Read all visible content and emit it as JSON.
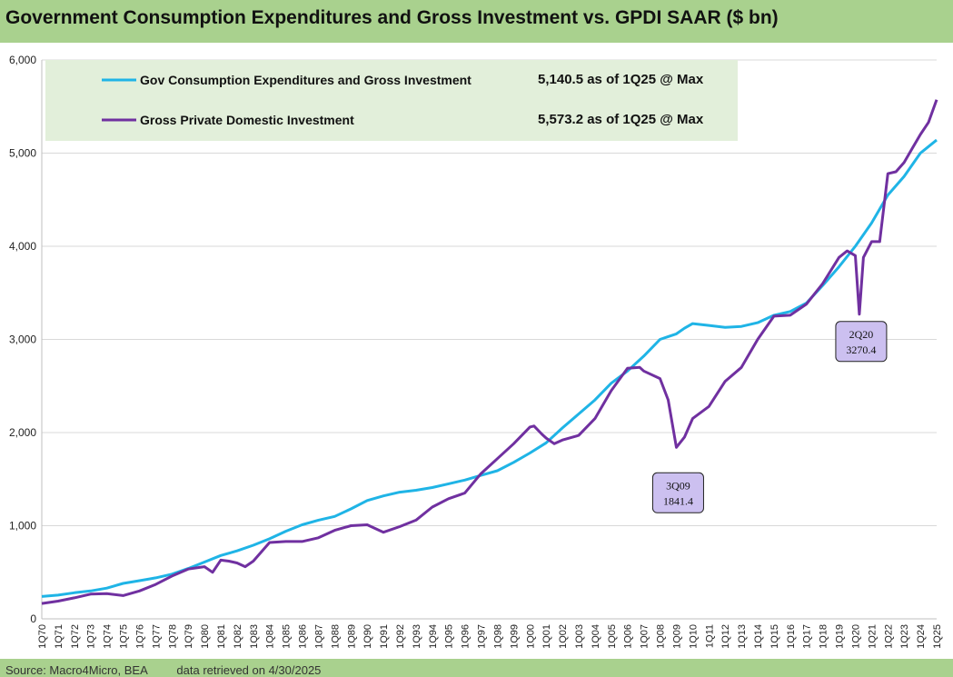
{
  "chart_data": {
    "type": "line",
    "title": "Government Consumption Expenditures and Gross Investment vs. GPDI SAAR ($ bn)",
    "xlabel": "",
    "ylabel": "",
    "ylim": [
      0,
      6000
    ],
    "yticks": [
      0,
      1000,
      2000,
      3000,
      4000,
      5000,
      6000
    ],
    "ytick_labels": [
      "0",
      "1,000",
      "2,000",
      "3,000",
      "4,000",
      "5,000",
      "6,000"
    ],
    "grid": true,
    "legend_position": "top-left",
    "x_tick_labels": [
      "1Q70",
      "1Q71",
      "1Q72",
      "1Q73",
      "1Q74",
      "1Q75",
      "1Q76",
      "1Q77",
      "1Q78",
      "1Q79",
      "1Q80",
      "1Q81",
      "1Q82",
      "1Q83",
      "1Q84",
      "1Q85",
      "1Q86",
      "1Q87",
      "1Q88",
      "1Q89",
      "1Q90",
      "1Q91",
      "1Q92",
      "1Q93",
      "1Q94",
      "1Q95",
      "1Q96",
      "1Q97",
      "1Q98",
      "1Q99",
      "1Q00",
      "1Q01",
      "1Q02",
      "1Q03",
      "1Q04",
      "1Q05",
      "1Q06",
      "1Q07",
      "1Q08",
      "1Q09",
      "1Q10",
      "1Q11",
      "1Q12",
      "1Q13",
      "1Q14",
      "1Q15",
      "1Q16",
      "1Q17",
      "1Q18",
      "1Q19",
      "1Q20",
      "1Q21",
      "1Q22",
      "1Q23",
      "1Q24",
      "1Q25"
    ],
    "series": [
      {
        "name": "Gov Consumption Expenditures and Gross Investment",
        "color": "#1fb4e6",
        "x": [
          1970,
          1971,
          1972,
          1973,
          1974,
          1975,
          1976,
          1977,
          1978,
          1979,
          1980,
          1981,
          1982,
          1983,
          1984,
          1985,
          1986,
          1987,
          1988,
          1989,
          1990,
          1991,
          1992,
          1993,
          1994,
          1995,
          1996,
          1997,
          1998,
          1999,
          2000,
          2001,
          2002,
          2003,
          2004,
          2005,
          2006,
          2007,
          2008,
          2008.5,
          2009,
          2009.5,
          2010,
          2011,
          2012,
          2013,
          2014,
          2015,
          2016,
          2017,
          2018,
          2019,
          2020,
          2021,
          2022,
          2023,
          2024,
          2025
        ],
        "values": [
          240,
          255,
          280,
          300,
          330,
          380,
          410,
          440,
          480,
          540,
          610,
          680,
          730,
          790,
          860,
          940,
          1010,
          1060,
          1100,
          1180,
          1270,
          1320,
          1360,
          1380,
          1410,
          1450,
          1490,
          1540,
          1590,
          1680,
          1780,
          1890,
          2050,
          2200,
          2350,
          2530,
          2660,
          2820,
          3000,
          3030,
          3060,
          3120,
          3170,
          3150,
          3130,
          3140,
          3180,
          3260,
          3300,
          3390,
          3580,
          3780,
          4000,
          4250,
          4550,
          4750,
          5000,
          5140.5
        ]
      },
      {
        "name": "Gross Private Domestic Investment",
        "color": "#7030a0",
        "x": [
          1970,
          1971,
          1972,
          1973,
          1974,
          1975,
          1976,
          1977,
          1978,
          1979,
          1980,
          1980.5,
          1981,
          1981.5,
          1982,
          1982.5,
          1983,
          1984,
          1985,
          1986,
          1987,
          1988,
          1989,
          1990,
          1990.5,
          1991,
          1992,
          1993,
          1994,
          1995,
          1996,
          1997,
          1998,
          1999,
          2000,
          2000.25,
          2000.75,
          2001,
          2001.5,
          2002,
          2003,
          2004,
          2005,
          2006,
          2006.75,
          2007,
          2008,
          2008.5,
          2009,
          2009.5,
          2010,
          2011,
          2012,
          2013,
          2014,
          2015,
          2016,
          2017,
          2018,
          2019,
          2019.5,
          2020,
          2020.25,
          2020.5,
          2021,
          2021.5,
          2022,
          2022.5,
          2023,
          2023.5,
          2024,
          2024.5,
          2025
        ],
        "values": [
          165,
          190,
          225,
          265,
          270,
          250,
          300,
          370,
          460,
          535,
          560,
          500,
          630,
          620,
          600,
          560,
          620,
          820,
          830,
          830,
          870,
          950,
          1000,
          1010,
          970,
          930,
          990,
          1060,
          1200,
          1290,
          1350,
          1560,
          1720,
          1880,
          2060,
          2070,
          1980,
          1940,
          1880,
          1920,
          1970,
          2150,
          2450,
          2690,
          2700,
          2660,
          2580,
          2350,
          1841.4,
          1950,
          2150,
          2280,
          2550,
          2700,
          3000,
          3250,
          3260,
          3380,
          3600,
          3880,
          3950,
          3900,
          3270.4,
          3880,
          4050,
          4050,
          4780,
          4800,
          4900,
          5050,
          5200,
          5330,
          5573.2
        ]
      }
    ],
    "legend": [
      {
        "label": "Gov Consumption Expenditures and Gross Investment",
        "value_note": "5,140.5 as of 1Q25 @ Max"
      },
      {
        "label": "Gross Private Domestic Investment",
        "value_note": "5,573.2 as of 1Q25 @ Max"
      }
    ],
    "annotations": [
      {
        "period": "3Q09",
        "value": 1841.4,
        "value_label": "1841.4",
        "x": 2009.0
      },
      {
        "period": "2Q20",
        "value": 3270.4,
        "value_label": "3270.4",
        "x": 2020.25
      }
    ]
  },
  "footer": {
    "source": "Source: Macro4Micro, BEA",
    "retrieved": "data retrieved on 4/30/2025"
  }
}
